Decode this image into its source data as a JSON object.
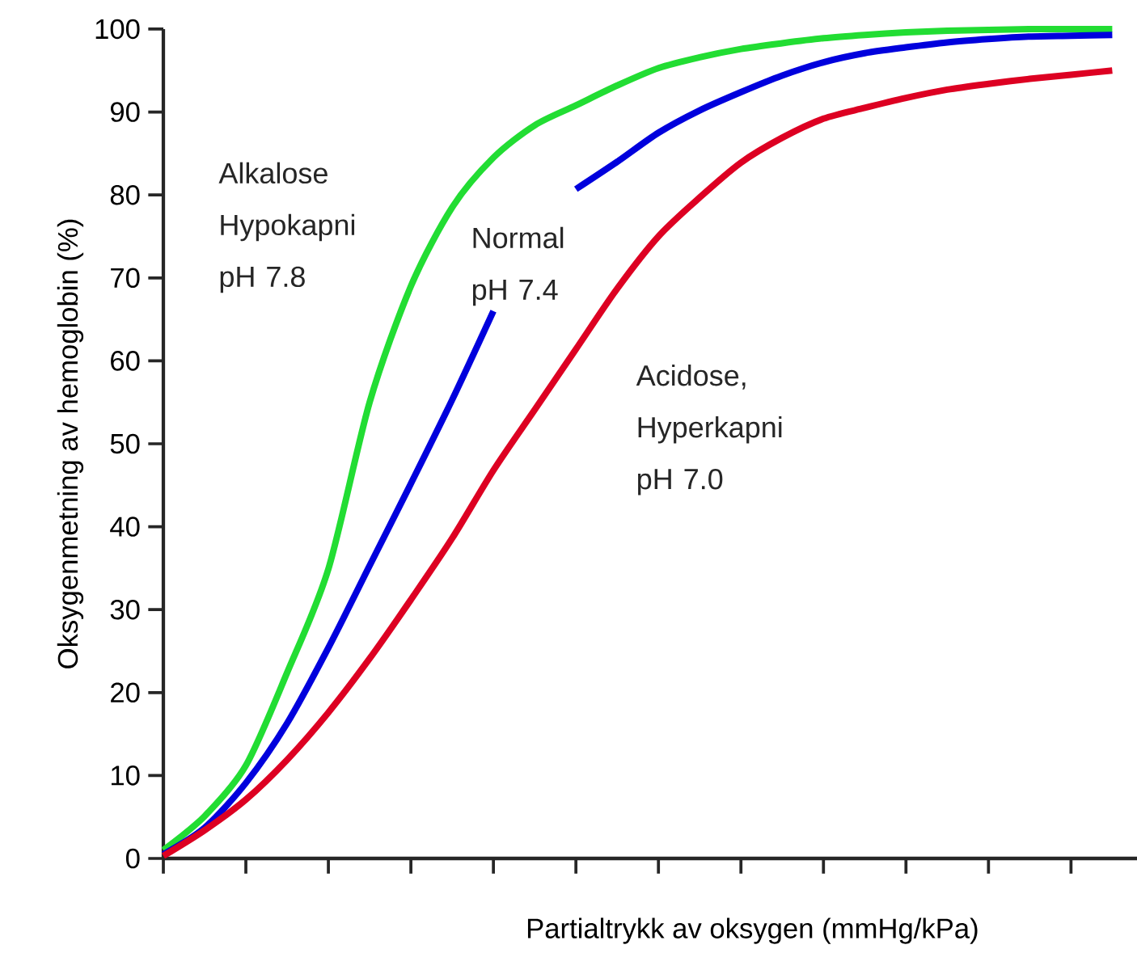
{
  "chart_data": {
    "type": "line",
    "xlabel": "Partialtrykk av oksygen (mmHg/kPa)",
    "ylabel": "Oksygenmetning av hemoglobin (%)",
    "categories": [
      null,
      null,
      null,
      null,
      null,
      null,
      null,
      null,
      null,
      null,
      null,
      null,
      null,
      null,
      null,
      null,
      null,
      null,
      null,
      null,
      null,
      null,
      null,
      null
    ],
    "series": [
      {
        "name": "Alkalose Hypokapni pH 7.8",
        "color": "#22dd33",
        "values": [
          1.0,
          5.1,
          11.2,
          22.4,
          34.9,
          55,
          69,
          78.5,
          84.5,
          88.4,
          90.8,
          93.2,
          95.3,
          96.6,
          97.6,
          98.3,
          98.9,
          99.3,
          99.6,
          99.8,
          99.9,
          100,
          100,
          100
        ]
      },
      {
        "name": "Normal pH 7.4",
        "color": "#0000dd",
        "values": [
          0.5,
          3.7,
          9.1,
          16.3,
          25.4,
          35.3,
          45.2,
          55.3,
          66,
          null,
          80.7,
          84,
          87.5,
          90.2,
          92.4,
          94.4,
          96,
          97.1,
          97.8,
          98.4,
          98.8,
          99.1,
          99.2,
          99.3
        ]
      },
      {
        "name": "Acidose, Hyperkapni pH 7.0",
        "color": "#dd0022",
        "values": [
          0.3,
          3.4,
          7.1,
          11.9,
          17.6,
          24.1,
          31.2,
          38.6,
          46.8,
          54.1,
          61.4,
          68.7,
          75,
          79.7,
          83.9,
          86.9,
          89.2,
          90.5,
          91.7,
          92.7,
          93.4,
          94,
          94.5,
          95
        ]
      }
    ],
    "ylim": [
      0,
      100
    ],
    "yticks": [
      0,
      10,
      20,
      30,
      40,
      50,
      60,
      70,
      80,
      90,
      100
    ],
    "grid": false,
    "legend": false
  }
}
